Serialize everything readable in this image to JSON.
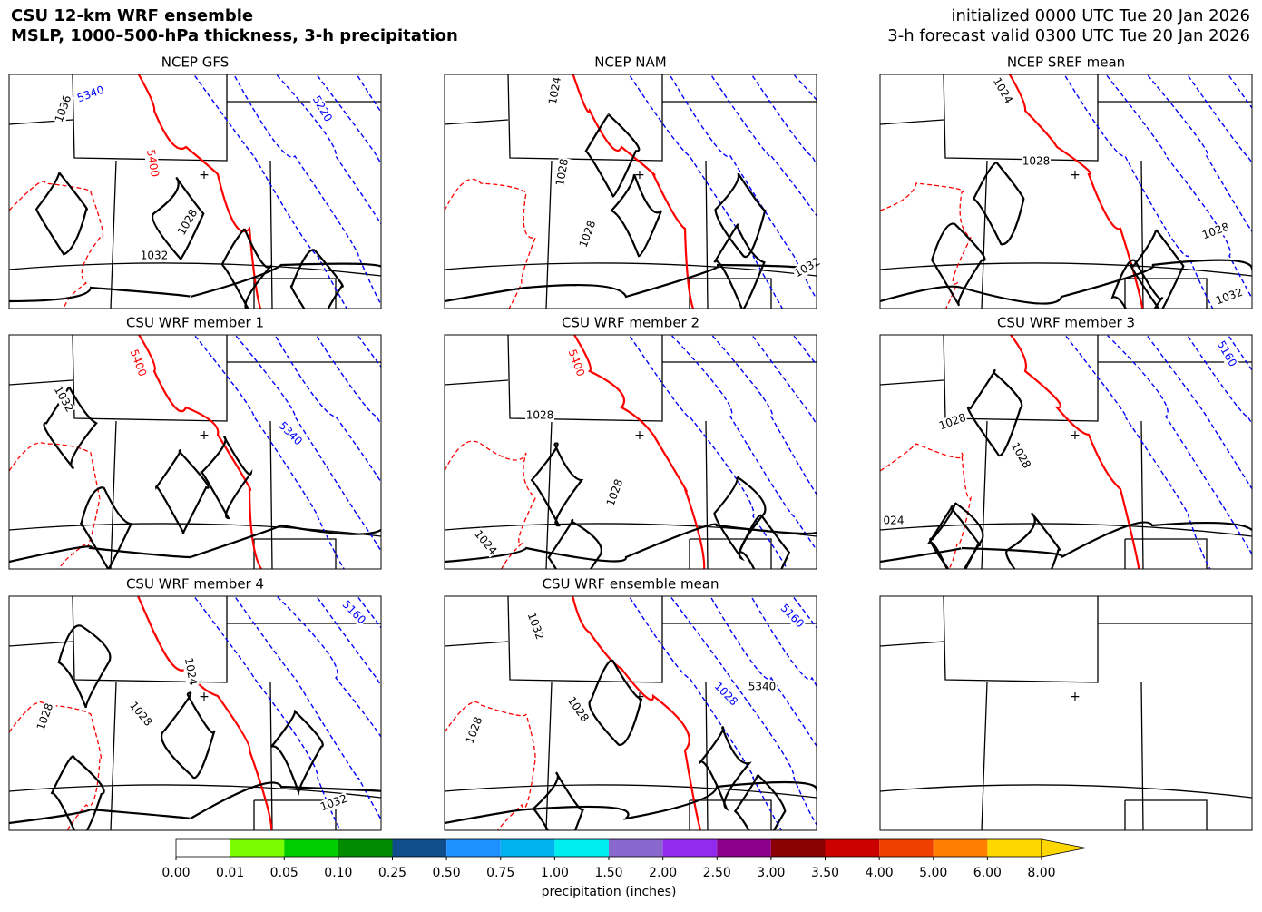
{
  "header": {
    "title_lines": [
      "CSU 12-km WRF ensemble",
      "MSLP, 1000–500-hPa thickness, 3-h precipitation"
    ],
    "info_lines": [
      "initialized 0000 UTC Tue 20 Jan 2026",
      "3-h forecast valid 0300 UTC Tue 20 Jan 2026"
    ]
  },
  "panels": [
    {
      "title": "NCEP GFS",
      "contour_labels": [
        "5340",
        "5220",
        "1036",
        "5400",
        "1028",
        "1032"
      ]
    },
    {
      "title": "NCEP NAM",
      "contour_labels": [
        "1024",
        "1028",
        "1028",
        "1032"
      ]
    },
    {
      "title": "NCEP SREF mean",
      "contour_labels": [
        "1024",
        "1028",
        "1028",
        "1032"
      ]
    },
    {
      "title": "CSU WRF member 1",
      "contour_labels": [
        "5400",
        "1032",
        "5340"
      ]
    },
    {
      "title": "CSU WRF member 2",
      "contour_labels": [
        "5400",
        "1028",
        "1028",
        "1024"
      ]
    },
    {
      "title": "CSU WRF member 3",
      "contour_labels": [
        "5160",
        "1028",
        "1028",
        "024"
      ]
    },
    {
      "title": "CSU WRF member 4",
      "contour_labels": [
        "5160",
        "1024",
        "1028",
        "1028",
        "1032"
      ]
    },
    {
      "title": "CSU WRF ensemble mean",
      "contour_labels": [
        "5160",
        "1032",
        "1028",
        "1028",
        "1028",
        "5340"
      ]
    }
  ],
  "colorbar": {
    "label": "precipitation (inches)",
    "colors": [
      "#ffffff",
      "#7cfc00",
      "#00cd00",
      "#008b00",
      "#104e8b",
      "#1e90ff",
      "#00b2ee",
      "#00eeee",
      "#8968cd",
      "#912cee",
      "#8b008b",
      "#8b0000",
      "#cd0000",
      "#ee4000",
      "#ff7f00",
      "#ffd700"
    ],
    "extend_color": "#ffd700",
    "ticks": [
      {
        "value": 0,
        "label": "0.00"
      },
      {
        "value": 0.01,
        "label": "0.01"
      },
      {
        "value": 0.05,
        "label": "0.05"
      },
      {
        "value": 0.1,
        "label": "0.10"
      },
      {
        "value": 0.25,
        "label": "0.25"
      },
      {
        "value": 0.5,
        "label": "0.50"
      },
      {
        "value": 0.75,
        "label": "0.75"
      },
      {
        "value": 1,
        "label": "1.00"
      },
      {
        "value": 1.5,
        "label": "1.50"
      },
      {
        "value": 2,
        "label": "2.00"
      },
      {
        "value": 2.5,
        "label": "2.50"
      },
      {
        "value": 3,
        "label": "3.00"
      },
      {
        "value": 3.5,
        "label": "3.50"
      },
      {
        "value": 4,
        "label": "4.00"
      },
      {
        "value": 5,
        "label": "5.00"
      },
      {
        "value": 6,
        "label": "6.00"
      },
      {
        "value": 8,
        "label": "8.00"
      }
    ]
  }
}
